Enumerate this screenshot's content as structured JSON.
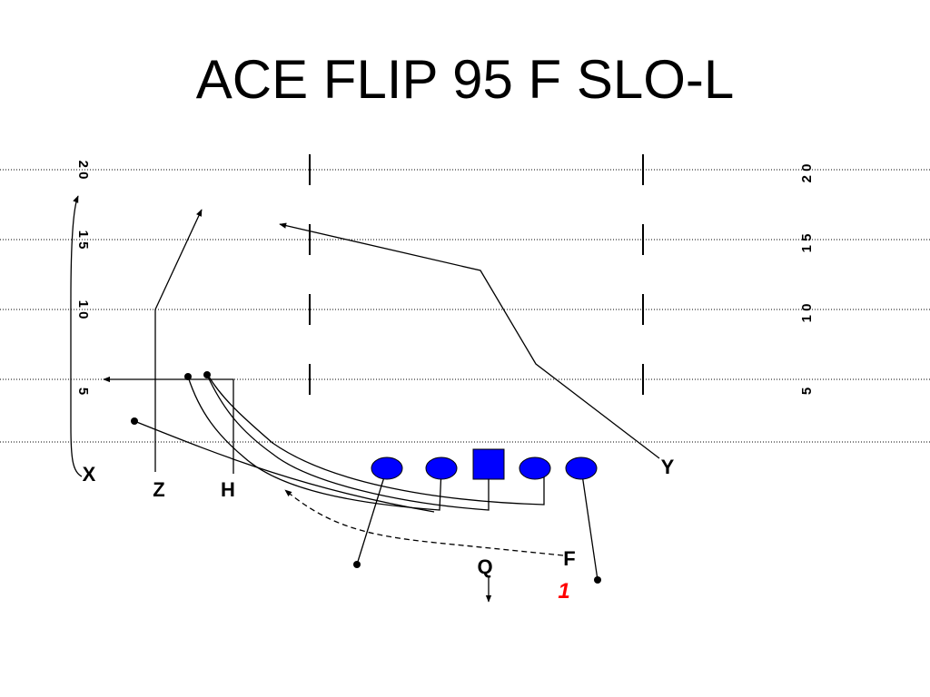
{
  "title": "ACE FLIP 95 F SLO-L",
  "yard_numbers": {
    "left": [
      "2 0",
      "1 5",
      "1 0",
      "5"
    ],
    "right": [
      "2 0",
      "1 5",
      "1 0",
      "5"
    ]
  },
  "players": {
    "x": "X",
    "z": "Z",
    "h": "H",
    "y": "Y",
    "f": "F",
    "q": "Q"
  },
  "read_number": "1",
  "colors": {
    "lineman": "#0000ff",
    "read": "#ff0000",
    "lines": "#000000"
  }
}
